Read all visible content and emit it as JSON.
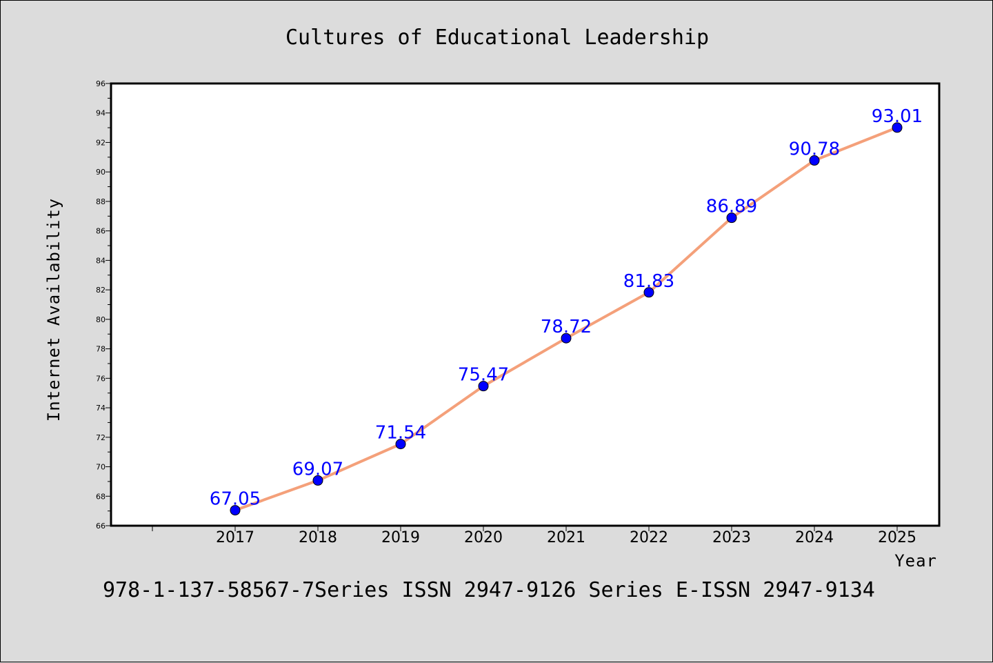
{
  "footer_text": "978-1-137-58567-7Series ISSN 2947-9126 Series E-ISSN 2947-9134",
  "colors": {
    "background": "#dcdcdc",
    "plot_background": "#ffffff",
    "line": "#f4a07a",
    "marker": "#0000ff",
    "data_label": "#0000ff"
  },
  "chart_data": {
    "type": "line",
    "title": "Cultures of Educational Leadership",
    "xlabel": "Year",
    "ylabel": "Internet Availability",
    "categories": [
      "2017",
      "2018",
      "2019",
      "2020",
      "2021",
      "2022",
      "2023",
      "2024",
      "2025"
    ],
    "series": [
      {
        "values": [
          67.05,
          69.07,
          71.54,
          75.47,
          78.72,
          81.83,
          86.89,
          90.78,
          93.01
        ],
        "labels": [
          "67.05",
          "69.07",
          "71.54",
          "75.47",
          "78.72",
          "81.83",
          "86.89",
          "90.78",
          "93.01"
        ]
      }
    ],
    "ylim": [
      66,
      96
    ],
    "yticks": [
      "66",
      "68",
      "70",
      "72",
      "74",
      "76",
      "78",
      "80",
      "82",
      "84",
      "86",
      "88",
      "90",
      "92",
      "94",
      "96"
    ],
    "grid": false,
    "legend": "none",
    "marker": "circle"
  }
}
